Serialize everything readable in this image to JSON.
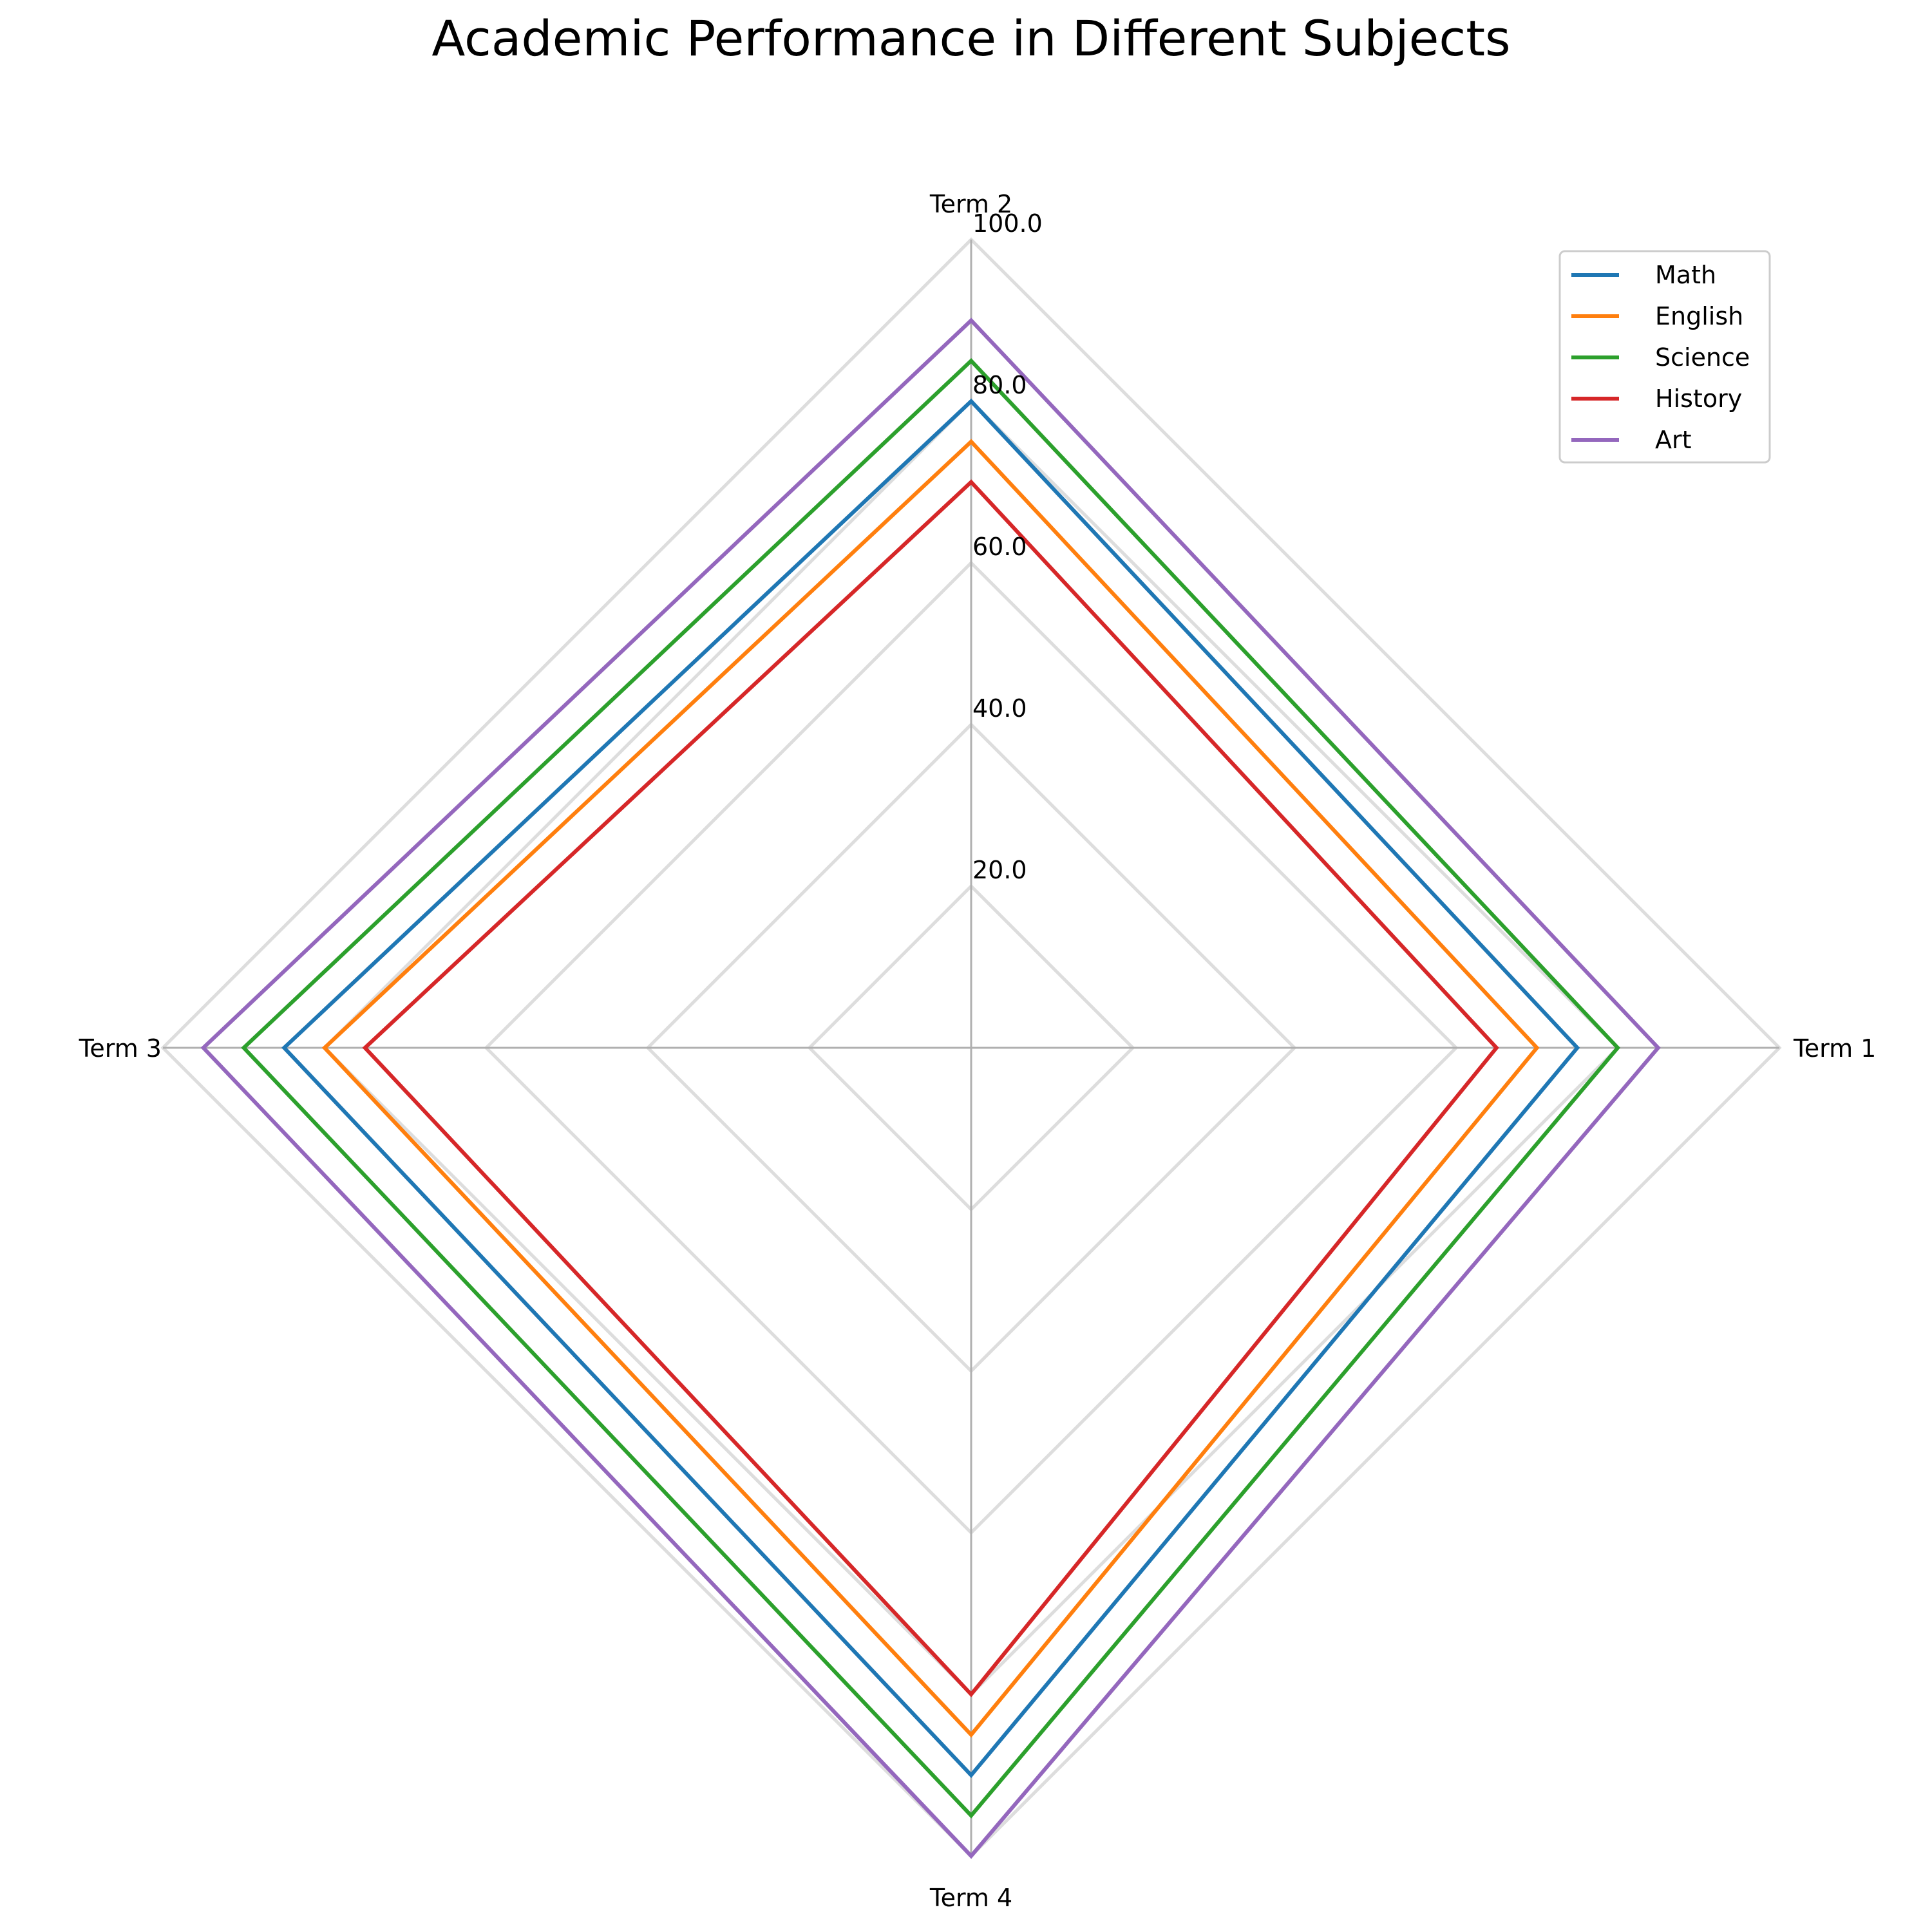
{
  "chart_data": {
    "type": "radar",
    "title": "Academic Performance in Different Subjects",
    "categories": [
      "Term 1",
      "Term 2",
      "Term 3",
      "Term 4"
    ],
    "rlim": [
      0,
      100
    ],
    "rticks": [
      20,
      40,
      60,
      80,
      100
    ],
    "rtick_labels": [
      "20.0",
      "40.0",
      "60.0",
      "80.0",
      "100.0"
    ],
    "grid": true,
    "legend": "top-right",
    "series": [
      {
        "name": "Math",
        "color": "#1f77b4",
        "values": [
          75,
          80,
          85,
          90
        ]
      },
      {
        "name": "English",
        "color": "#ff7f0e",
        "values": [
          70,
          75,
          80,
          85
        ]
      },
      {
        "name": "Science",
        "color": "#2ca02c",
        "values": [
          80,
          85,
          90,
          95
        ]
      },
      {
        "name": "History",
        "color": "#d62728",
        "values": [
          65,
          70,
          75,
          80
        ]
      },
      {
        "name": "Art",
        "color": "#9467bd",
        "values": [
          85,
          90,
          95,
          100
        ]
      }
    ]
  }
}
